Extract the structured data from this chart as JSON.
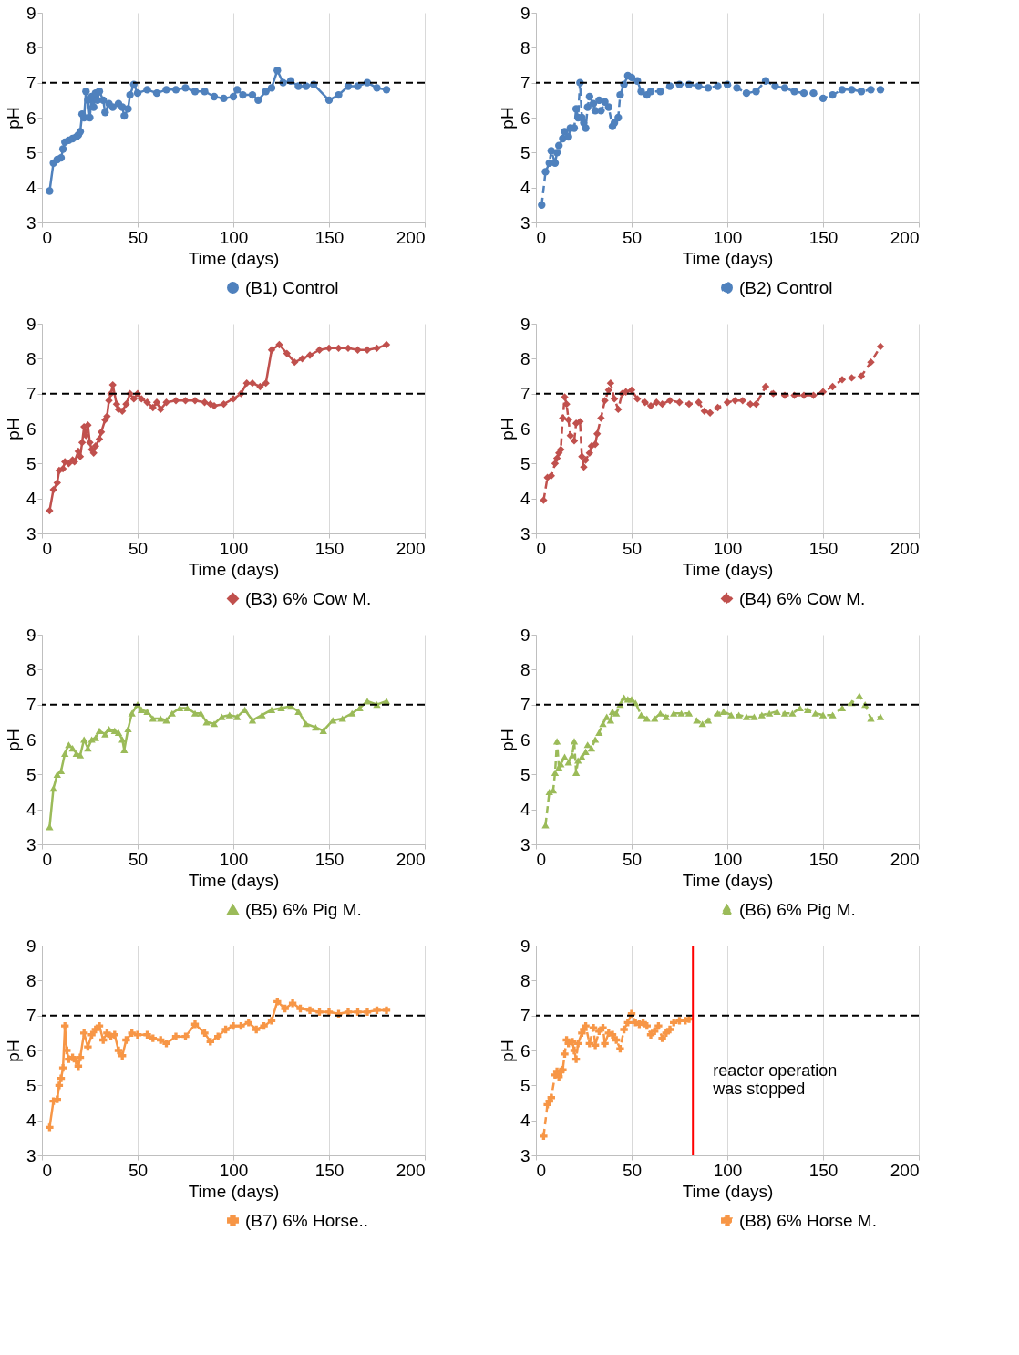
{
  "chart_data": [
    {
      "type": "line",
      "xlabel": "Time (days)",
      "ylabel": "pH",
      "xlim": [
        0,
        200
      ],
      "ylim": [
        3,
        9
      ],
      "xticks": [
        0,
        50,
        100,
        150,
        200
      ],
      "yticks": [
        3,
        4,
        5,
        6,
        7,
        8,
        9
      ],
      "grid": "x",
      "legend": "bottom right",
      "marker": "circle",
      "line_style": "solid",
      "ref_lines": [
        {
          "axis": "y",
          "value": 7,
          "color": "#000000",
          "line_style": "dashed"
        }
      ],
      "x": [
        4,
        6,
        8,
        10,
        11,
        12,
        14,
        16,
        18,
        19,
        20,
        21,
        22,
        23,
        24,
        25,
        26,
        27,
        28,
        29,
        30,
        32,
        33,
        35,
        37,
        40,
        42,
        43,
        45,
        46,
        48,
        50,
        55,
        60,
        65,
        70,
        75,
        80,
        85,
        90,
        95,
        100,
        102,
        105,
        110,
        113,
        117,
        120,
        123,
        126,
        130,
        134,
        138,
        142,
        150,
        155,
        160,
        165,
        170,
        175,
        180
      ],
      "series": [
        {
          "name": "(B1) Control",
          "color": "#4f81bd",
          "values": [
            3.9,
            4.7,
            4.8,
            4.85,
            5.1,
            5.3,
            5.35,
            5.4,
            5.45,
            5.5,
            5.6,
            6.1,
            6.0,
            6.75,
            6.5,
            6.0,
            6.6,
            6.3,
            6.7,
            6.5,
            6.75,
            6.5,
            6.15,
            6.4,
            6.3,
            6.4,
            6.3,
            6.05,
            6.25,
            6.65,
            6.95,
            6.7,
            6.8,
            6.7,
            6.8,
            6.8,
            6.85,
            6.75,
            6.75,
            6.6,
            6.55,
            6.6,
            6.8,
            6.65,
            6.65,
            6.5,
            6.75,
            6.85,
            7.35,
            7.0,
            7.05,
            6.9,
            6.9,
            6.95,
            6.5,
            6.65,
            6.9,
            6.9,
            7.0,
            6.85,
            6.8
          ]
        }
      ]
    },
    {
      "type": "line",
      "xlabel": "Time (days)",
      "ylabel": "pH",
      "xlim": [
        0,
        200
      ],
      "ylim": [
        3,
        9
      ],
      "xticks": [
        0,
        50,
        100,
        150,
        200
      ],
      "yticks": [
        3,
        4,
        5,
        6,
        7,
        8,
        9
      ],
      "grid": "x",
      "legend": "bottom right",
      "marker": "circle",
      "line_style": "dashed",
      "ref_lines": [
        {
          "axis": "y",
          "value": 7,
          "color": "#000000",
          "line_style": "dashed"
        }
      ],
      "x": [
        3,
        5,
        7,
        8,
        10,
        11,
        12,
        14,
        15,
        17,
        18,
        20,
        21,
        22,
        23,
        24,
        25,
        26,
        27,
        28,
        30,
        31,
        33,
        34,
        36,
        38,
        40,
        41,
        43,
        44,
        46,
        48,
        50,
        53,
        55,
        58,
        60,
        65,
        70,
        75,
        80,
        85,
        90,
        95,
        100,
        105,
        110,
        115,
        120,
        125,
        130,
        135,
        140,
        145,
        150,
        155,
        160,
        165,
        170,
        175,
        180
      ],
      "series": [
        {
          "name": "(B2) Control",
          "color": "#4f81bd",
          "values": [
            3.5,
            4.45,
            4.7,
            5.05,
            4.7,
            5.0,
            5.2,
            5.4,
            5.6,
            5.45,
            5.7,
            5.7,
            6.25,
            6.0,
            7.0,
            6.0,
            5.85,
            5.7,
            6.3,
            6.6,
            6.4,
            6.2,
            6.5,
            6.2,
            6.45,
            6.3,
            5.75,
            5.85,
            6.0,
            6.65,
            6.95,
            7.2,
            7.15,
            7.05,
            6.75,
            6.65,
            6.75,
            6.75,
            6.9,
            6.95,
            6.95,
            6.9,
            6.85,
            6.9,
            6.95,
            6.85,
            6.7,
            6.75,
            7.05,
            6.9,
            6.85,
            6.75,
            6.7,
            6.7,
            6.55,
            6.65,
            6.8,
            6.8,
            6.75,
            6.8,
            6.8
          ]
        }
      ]
    },
    {
      "type": "line",
      "xlabel": "Time (days)",
      "ylabel": "pH",
      "xlim": [
        0,
        200
      ],
      "ylim": [
        3,
        9
      ],
      "xticks": [
        0,
        50,
        100,
        150,
        200
      ],
      "yticks": [
        3,
        4,
        5,
        6,
        7,
        8,
        9
      ],
      "grid": "x",
      "legend": "bottom right",
      "marker": "diamond",
      "line_style": "solid",
      "ref_lines": [
        {
          "axis": "y",
          "value": 7,
          "color": "#000000",
          "line_style": "dashed"
        }
      ],
      "x": [
        4,
        6,
        8,
        9,
        11,
        12,
        14,
        16,
        17,
        19,
        20,
        21,
        22,
        23,
        24,
        25,
        26,
        27,
        28,
        30,
        31,
        33,
        34,
        35,
        36,
        37,
        39,
        40,
        42,
        44,
        46,
        48,
        50,
        52,
        55,
        58,
        60,
        62,
        65,
        70,
        75,
        80,
        85,
        88,
        90,
        95,
        100,
        104,
        107,
        110,
        114,
        117,
        120,
        124,
        128,
        132,
        136,
        140,
        145,
        150,
        155,
        160,
        165,
        170,
        175,
        180
      ],
      "series": [
        {
          "name": "(B3) 6% Cow M.",
          "color": "#c0504d",
          "values": [
            3.65,
            4.25,
            4.45,
            4.8,
            4.85,
            5.05,
            5.0,
            5.1,
            5.05,
            5.35,
            5.2,
            5.6,
            6.05,
            5.8,
            6.1,
            5.6,
            5.4,
            5.3,
            5.5,
            5.7,
            5.9,
            6.25,
            6.35,
            6.8,
            7.0,
            7.25,
            6.7,
            6.55,
            6.5,
            6.7,
            7.0,
            6.85,
            7.0,
            6.85,
            6.75,
            6.6,
            6.75,
            6.55,
            6.75,
            6.8,
            6.8,
            6.8,
            6.75,
            6.7,
            6.65,
            6.7,
            6.85,
            7.0,
            7.3,
            7.3,
            7.2,
            7.3,
            8.25,
            8.4,
            8.15,
            7.9,
            8.0,
            8.1,
            8.25,
            8.3,
            8.3,
            8.3,
            8.25,
            8.25,
            8.3,
            8.4
          ]
        }
      ]
    },
    {
      "type": "line",
      "xlabel": "Time (days)",
      "ylabel": "pH",
      "xlim": [
        0,
        200
      ],
      "ylim": [
        3,
        9
      ],
      "xticks": [
        0,
        50,
        100,
        150,
        200
      ],
      "yticks": [
        3,
        4,
        5,
        6,
        7,
        8,
        9
      ],
      "grid": "x",
      "legend": "bottom right",
      "marker": "diamond",
      "line_style": "dashed",
      "ref_lines": [
        {
          "axis": "y",
          "value": 7,
          "color": "#000000",
          "line_style": "dashed"
        }
      ],
      "x": [
        4,
        6,
        8,
        10,
        11,
        12,
        13,
        14,
        15,
        16,
        17,
        18,
        20,
        21,
        23,
        24,
        25,
        26,
        28,
        29,
        31,
        32,
        34,
        36,
        38,
        39,
        41,
        43,
        45,
        47,
        50,
        53,
        57,
        60,
        63,
        66,
        70,
        75,
        80,
        85,
        88,
        91,
        95,
        100,
        104,
        108,
        112,
        115,
        120,
        124,
        130,
        135,
        140,
        145,
        150,
        155,
        160,
        165,
        170,
        175,
        180
      ],
      "series": [
        {
          "name": "(B4) 6% Cow M.",
          "color": "#c0504d",
          "values": [
            3.95,
            4.6,
            4.65,
            5.0,
            5.15,
            5.3,
            5.4,
            6.3,
            6.9,
            6.7,
            6.25,
            5.8,
            5.65,
            6.15,
            6.2,
            5.2,
            4.9,
            5.1,
            5.3,
            5.5,
            5.55,
            5.85,
            6.3,
            6.8,
            7.1,
            7.3,
            6.85,
            6.55,
            7.0,
            7.05,
            7.1,
            6.85,
            6.75,
            6.65,
            6.75,
            6.7,
            6.8,
            6.75,
            6.7,
            6.75,
            6.5,
            6.45,
            6.6,
            6.75,
            6.8,
            6.8,
            6.7,
            6.7,
            7.2,
            7.0,
            6.95,
            6.95,
            6.95,
            6.95,
            7.05,
            7.2,
            7.4,
            7.45,
            7.5,
            7.9,
            8.35
          ]
        }
      ]
    },
    {
      "type": "line",
      "xlabel": "Time (days)",
      "ylabel": "pH",
      "xlim": [
        0,
        200
      ],
      "ylim": [
        3,
        9
      ],
      "xticks": [
        0,
        50,
        100,
        150,
        200
      ],
      "yticks": [
        3,
        4,
        5,
        6,
        7,
        8,
        9
      ],
      "grid": "x",
      "legend": "bottom right",
      "marker": "triangle",
      "line_style": "solid",
      "ref_lines": [
        {
          "axis": "y",
          "value": 7,
          "color": "#000000",
          "line_style": "dashed"
        }
      ],
      "x": [
        4,
        6,
        8,
        10,
        12,
        14,
        16,
        18,
        20,
        22,
        24,
        26,
        28,
        30,
        33,
        35,
        38,
        40,
        42,
        43,
        45,
        47,
        50,
        52,
        55,
        58,
        62,
        65,
        68,
        72,
        76,
        80,
        83,
        86,
        90,
        94,
        98,
        102,
        106,
        110,
        115,
        120,
        125,
        130,
        134,
        138,
        143,
        147,
        152,
        157,
        162,
        166,
        170,
        175,
        180
      ],
      "series": [
        {
          "name": "(B5) 6% Pig M.",
          "color": "#9bbb59",
          "values": [
            3.5,
            4.6,
            5.0,
            5.1,
            5.6,
            5.85,
            5.75,
            5.6,
            5.55,
            6.0,
            5.75,
            6.0,
            6.05,
            6.25,
            6.15,
            6.3,
            6.25,
            6.2,
            6.0,
            5.7,
            6.3,
            6.75,
            7.0,
            6.85,
            6.8,
            6.6,
            6.6,
            6.55,
            6.75,
            6.9,
            6.9,
            6.75,
            6.75,
            6.5,
            6.45,
            6.65,
            6.7,
            6.65,
            6.85,
            6.55,
            6.7,
            6.85,
            6.9,
            6.95,
            6.8,
            6.45,
            6.35,
            6.25,
            6.55,
            6.6,
            6.75,
            6.9,
            7.1,
            7.0,
            7.1
          ]
        }
      ]
    },
    {
      "type": "line",
      "xlabel": "Time (days)",
      "ylabel": "pH",
      "xlim": [
        0,
        200
      ],
      "ylim": [
        3,
        9
      ],
      "xticks": [
        0,
        50,
        100,
        150,
        200
      ],
      "yticks": [
        3,
        4,
        5,
        6,
        7,
        8,
        9
      ],
      "grid": "x",
      "legend": "bottom right",
      "marker": "triangle",
      "line_style": "dashed",
      "ref_lines": [
        {
          "axis": "y",
          "value": 7,
          "color": "#000000",
          "line_style": "dashed"
        }
      ],
      "x": [
        5,
        7,
        9,
        10,
        11,
        12,
        13,
        15,
        17,
        19,
        20,
        21,
        22,
        24,
        26,
        27,
        29,
        31,
        33,
        35,
        37,
        39,
        40,
        42,
        44,
        46,
        48,
        50,
        52,
        55,
        58,
        62,
        65,
        68,
        72,
        76,
        80,
        84,
        87,
        90,
        95,
        98,
        102,
        106,
        110,
        114,
        118,
        122,
        126,
        130,
        134,
        138,
        142,
        146,
        150,
        155,
        160,
        165,
        169,
        172,
        175,
        180
      ],
      "series": [
        {
          "name": "(B6) 6% Pig M.",
          "color": "#9bbb59",
          "values": [
            3.55,
            4.5,
            4.55,
            5.05,
            5.95,
            5.2,
            5.3,
            5.5,
            5.35,
            5.55,
            5.95,
            5.05,
            5.4,
            5.5,
            5.65,
            5.85,
            5.75,
            6.0,
            6.2,
            6.45,
            6.65,
            6.55,
            6.8,
            6.75,
            7.0,
            7.2,
            7.15,
            7.15,
            7.05,
            6.7,
            6.6,
            6.6,
            6.75,
            6.65,
            6.75,
            6.75,
            6.75,
            6.55,
            6.45,
            6.55,
            6.75,
            6.8,
            6.7,
            6.7,
            6.65,
            6.65,
            6.7,
            6.75,
            6.8,
            6.75,
            6.75,
            6.9,
            6.85,
            6.75,
            6.7,
            6.7,
            6.9,
            7.05,
            7.25,
            7.0,
            6.6,
            6.65
          ]
        }
      ]
    },
    {
      "type": "line",
      "xlabel": "Time (days)",
      "ylabel": "pH",
      "xlim": [
        0,
        200
      ],
      "ylim": [
        3,
        9
      ],
      "xticks": [
        0,
        50,
        100,
        150,
        200
      ],
      "yticks": [
        3,
        4,
        5,
        6,
        7,
        8,
        9
      ],
      "grid": "x",
      "legend": "bottom right",
      "marker": "cross",
      "line_style": "solid",
      "ref_lines": [
        {
          "axis": "y",
          "value": 7,
          "color": "#000000",
          "line_style": "dashed"
        }
      ],
      "x": [
        4,
        6,
        8,
        9,
        10,
        11,
        12,
        13,
        14,
        16,
        18,
        19,
        20,
        22,
        24,
        26,
        28,
        30,
        32,
        34,
        36,
        38,
        40,
        42,
        44,
        47,
        50,
        55,
        58,
        62,
        65,
        70,
        75,
        80,
        85,
        88,
        92,
        96,
        100,
        104,
        108,
        112,
        116,
        120,
        123,
        127,
        131,
        135,
        140,
        145,
        150,
        155,
        160,
        165,
        170,
        175,
        180
      ],
      "series": [
        {
          "name": "(B7) 6% Horse..",
          "color": "#f79646",
          "values": [
            3.8,
            4.55,
            4.6,
            5.0,
            5.2,
            5.5,
            6.7,
            6.0,
            5.75,
            5.8,
            5.7,
            5.55,
            5.8,
            6.5,
            6.1,
            6.45,
            6.6,
            6.7,
            6.3,
            6.5,
            6.4,
            6.45,
            6.0,
            5.85,
            6.3,
            6.5,
            6.45,
            6.45,
            6.35,
            6.3,
            6.2,
            6.4,
            6.4,
            6.75,
            6.5,
            6.25,
            6.4,
            6.6,
            6.7,
            6.7,
            6.8,
            6.6,
            6.7,
            6.85,
            7.4,
            7.2,
            7.35,
            7.2,
            7.15,
            7.1,
            7.1,
            7.05,
            7.1,
            7.1,
            7.1,
            7.15,
            7.15
          ]
        }
      ]
    },
    {
      "type": "line",
      "xlabel": "Time (days)",
      "ylabel": "pH",
      "xlim": [
        0,
        200
      ],
      "ylim": [
        3,
        9
      ],
      "xticks": [
        0,
        50,
        100,
        150,
        200
      ],
      "yticks": [
        3,
        4,
        5,
        6,
        7,
        8,
        9
      ],
      "grid": "x",
      "legend": "bottom right",
      "marker": "cross",
      "line_style": "dashed",
      "ref_lines": [
        {
          "axis": "y",
          "value": 7,
          "color": "#000000",
          "line_style": "dashed"
        },
        {
          "axis": "x",
          "value": 82,
          "color": "#ff0000",
          "line_style": "solid"
        }
      ],
      "annotations": [
        {
          "text": "reactor operation\nwas stopped",
          "x": 82,
          "y": 5.4
        }
      ],
      "x": [
        4,
        6,
        7,
        8,
        10,
        11,
        12,
        13,
        14,
        15,
        16,
        17,
        19,
        20,
        21,
        22,
        24,
        25,
        26,
        28,
        30,
        31,
        33,
        35,
        36,
        38,
        40,
        42,
        44,
        46,
        48,
        50,
        52,
        54,
        56,
        58,
        60,
        62,
        64,
        66,
        68,
        70,
        72,
        75,
        78,
        80
      ],
      "series": [
        {
          "name": "(B8) 6% Horse M.",
          "color": "#f79646",
          "values": [
            3.55,
            4.45,
            4.55,
            4.65,
            5.3,
            5.4,
            5.25,
            5.4,
            5.45,
            5.9,
            6.3,
            6.2,
            6.25,
            6.0,
            5.75,
            6.2,
            6.5,
            6.6,
            6.7,
            6.2,
            6.65,
            6.15,
            6.55,
            6.65,
            6.2,
            6.5,
            6.45,
            6.3,
            6.05,
            6.6,
            6.8,
            7.05,
            6.8,
            6.75,
            6.8,
            6.7,
            6.45,
            6.55,
            6.7,
            6.35,
            6.5,
            6.6,
            6.8,
            6.85,
            6.85,
            6.9
          ]
        }
      ]
    }
  ]
}
